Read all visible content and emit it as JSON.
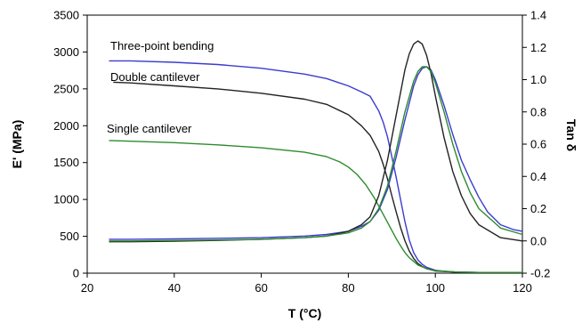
{
  "chart_data": {
    "type": "line",
    "title": "",
    "xlabel": "T (°C)",
    "ylabel": "E' (MPa)",
    "y2label": "Tan δ",
    "xlim": [
      20,
      120
    ],
    "ylim": [
      0,
      3500
    ],
    "y2lim": [
      -0.2,
      1.4
    ],
    "xticks": [
      "20",
      "40",
      "60",
      "80",
      "100",
      "120"
    ],
    "yticks": [
      "0",
      "500",
      "1000",
      "1500",
      "2000",
      "2500",
      "3000",
      "3500"
    ],
    "y2ticks": [
      "-0.2",
      "0.0",
      "0.2",
      "0.4",
      "0.6",
      "0.8",
      "1.0",
      "1.2",
      "1.4"
    ],
    "grid": false,
    "annotations": [
      "Three-point bending",
      "Double cantilever",
      "Single cantilever"
    ],
    "series": [
      {
        "name": "Three-point bending",
        "axis": "left",
        "color": "#3b3bd0",
        "x": [
          25,
          30,
          40,
          50,
          60,
          70,
          75,
          80,
          83,
          85,
          87,
          88,
          89,
          90,
          91,
          92,
          93,
          94,
          95,
          96,
          97,
          98,
          100,
          102,
          105,
          110,
          115,
          120
        ],
        "y": [
          2880,
          2880,
          2860,
          2830,
          2780,
          2700,
          2640,
          2540,
          2460,
          2400,
          2200,
          2050,
          1850,
          1580,
          1300,
          1000,
          700,
          450,
          280,
          180,
          120,
          80,
          40,
          25,
          15,
          10,
          10,
          10
        ]
      },
      {
        "name": "Double cantilever",
        "axis": "left",
        "color": "#222222",
        "x": [
          26,
          30,
          40,
          50,
          60,
          70,
          75,
          80,
          83,
          85,
          87,
          88,
          89,
          90,
          91,
          92,
          93,
          94,
          95,
          96,
          97,
          98,
          100,
          105,
          110,
          120
        ],
        "y": [
          2590,
          2580,
          2540,
          2500,
          2440,
          2360,
          2290,
          2150,
          2000,
          1870,
          1650,
          1480,
          1280,
          1050,
          830,
          620,
          440,
          300,
          200,
          130,
          90,
          60,
          30,
          15,
          10,
          10
        ]
      },
      {
        "name": "Single cantilever",
        "axis": "left",
        "color": "#2e8b2e",
        "x": [
          25,
          30,
          40,
          50,
          60,
          70,
          75,
          78,
          80,
          82,
          84,
          86,
          88,
          89,
          90,
          91,
          92,
          93,
          94,
          95,
          96,
          98,
          100,
          105,
          110,
          120
        ],
        "y": [
          1800,
          1790,
          1770,
          1740,
          1700,
          1640,
          1580,
          1510,
          1440,
          1340,
          1200,
          1020,
          800,
          690,
          580,
          470,
          370,
          280,
          210,
          160,
          110,
          60,
          35,
          15,
          10,
          10
        ]
      },
      {
        "name": "Three-point bending tan δ",
        "axis": "right",
        "color": "#3b3bd0",
        "x": [
          25,
          30,
          40,
          50,
          60,
          70,
          75,
          80,
          83,
          85,
          87,
          89,
          91,
          93,
          95,
          96,
          97,
          98,
          99,
          100,
          102,
          104,
          106,
          108,
          110,
          112,
          115,
          118,
          120
        ],
        "y": [
          0.01,
          0.01,
          0.013,
          0.016,
          0.02,
          0.03,
          0.04,
          0.06,
          0.09,
          0.12,
          0.19,
          0.32,
          0.52,
          0.75,
          0.96,
          1.03,
          1.07,
          1.08,
          1.06,
          1.0,
          0.84,
          0.66,
          0.5,
          0.38,
          0.27,
          0.18,
          0.1,
          0.07,
          0.06
        ]
      },
      {
        "name": "Double cantilever tan δ",
        "axis": "right",
        "color": "#222222",
        "x": [
          25,
          30,
          40,
          50,
          60,
          70,
          75,
          80,
          83,
          85,
          87,
          89,
          91,
          92,
          93,
          94,
          95,
          96,
          97,
          98,
          99,
          100,
          102,
          104,
          106,
          108,
          110,
          115,
          120
        ],
        "y": [
          -0.005,
          -0.005,
          -0.002,
          0.003,
          0.01,
          0.02,
          0.03,
          0.06,
          0.1,
          0.15,
          0.28,
          0.5,
          0.78,
          0.92,
          1.06,
          1.16,
          1.22,
          1.24,
          1.22,
          1.15,
          1.04,
          0.9,
          0.64,
          0.43,
          0.28,
          0.17,
          0.1,
          0.02,
          0.0
        ]
      },
      {
        "name": "Single cantilever tan δ",
        "axis": "right",
        "color": "#2e8b2e",
        "x": [
          25,
          30,
          40,
          50,
          60,
          70,
          75,
          80,
          83,
          85,
          87,
          89,
          91,
          93,
          95,
          96,
          97,
          98,
          99,
          100,
          102,
          104,
          106,
          108,
          110,
          115,
          120
        ],
        "y": [
          0.0,
          0.0,
          0.003,
          0.006,
          0.01,
          0.02,
          0.03,
          0.05,
          0.08,
          0.12,
          0.2,
          0.34,
          0.56,
          0.8,
          0.99,
          1.05,
          1.08,
          1.08,
          1.05,
          0.98,
          0.8,
          0.6,
          0.43,
          0.3,
          0.2,
          0.08,
          0.04
        ]
      }
    ]
  }
}
